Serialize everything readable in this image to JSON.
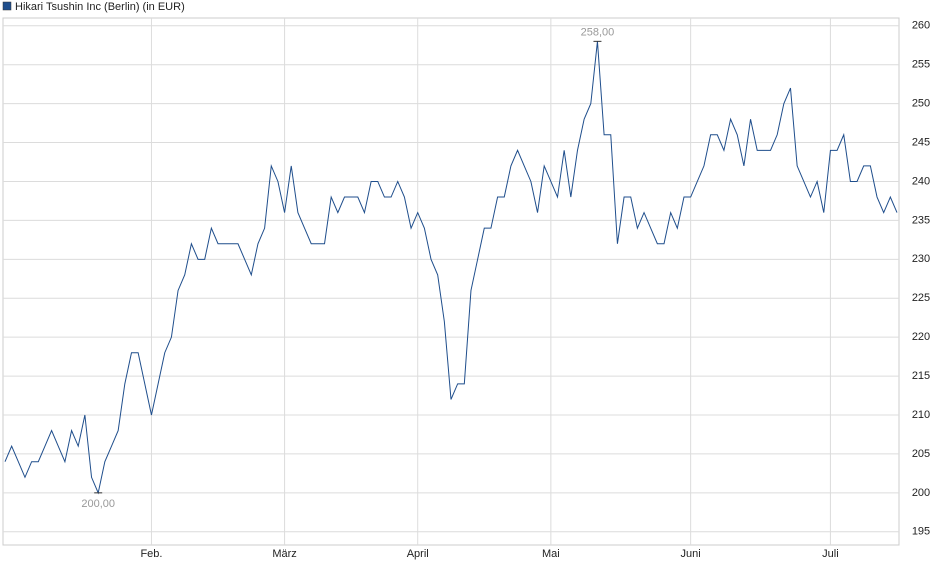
{
  "chart_data": {
    "type": "line",
    "categories": [
      null,
      null,
      null,
      null,
      null,
      null,
      null,
      null,
      null,
      null,
      null,
      null,
      null,
      null,
      null,
      null,
      null,
      null,
      null,
      null,
      null,
      null,
      "Feb.",
      null,
      null,
      null,
      null,
      null,
      null,
      null,
      null,
      null,
      null,
      null,
      null,
      null,
      null,
      null,
      null,
      null,
      null,
      null,
      "März",
      null,
      null,
      null,
      null,
      null,
      null,
      null,
      null,
      null,
      null,
      null,
      null,
      null,
      null,
      null,
      null,
      null,
      null,
      null,
      "April",
      null,
      null,
      null,
      null,
      null,
      null,
      null,
      null,
      null,
      null,
      null,
      null,
      null,
      null,
      null,
      null,
      null,
      null,
      null,
      "Mai",
      null,
      null,
      null,
      null,
      null,
      null,
      null,
      null,
      null,
      null,
      null,
      null,
      null,
      null,
      null,
      null,
      null,
      null,
      null,
      null,
      "Juni",
      null,
      null,
      null,
      null,
      null,
      null,
      null,
      null,
      null,
      null,
      null,
      null,
      null,
      null,
      null,
      null,
      null,
      null,
      null,
      null,
      "Juli",
      null,
      null,
      null,
      null,
      null,
      null,
      null,
      null,
      null,
      null
    ],
    "series": [
      {
        "name": "Hikari Tsushin Inc (Berlin) (in EUR)",
        "color": "#1f4e8c",
        "values": [
          204,
          206,
          204,
          202,
          204,
          204,
          206,
          208,
          206,
          204,
          208,
          206,
          210,
          202,
          200,
          204,
          206,
          208,
          214,
          218,
          218,
          214,
          210,
          214,
          218,
          220,
          226,
          228,
          232,
          230,
          230,
          234,
          232,
          232,
          232,
          232,
          230,
          228,
          232,
          234,
          242,
          240,
          236,
          242,
          236,
          234,
          232,
          232,
          232,
          238,
          236,
          238,
          238,
          238,
          236,
          240,
          240,
          238,
          238,
          240,
          238,
          234,
          236,
          234,
          230,
          228,
          222,
          212,
          214,
          214,
          226,
          230,
          234,
          234,
          238,
          238,
          242,
          244,
          242,
          240,
          236,
          242,
          240,
          238,
          244,
          238,
          244,
          248,
          250,
          258,
          246,
          246,
          232,
          238,
          238,
          234,
          236,
          234,
          232,
          232,
          236,
          234,
          238,
          238,
          240,
          242,
          246,
          246,
          244,
          248,
          246,
          242,
          248,
          244,
          244,
          244,
          246,
          250,
          252,
          242,
          240,
          238,
          240,
          236,
          244,
          244,
          246,
          240,
          240,
          242,
          242,
          238,
          236,
          238,
          236
        ],
        "value_labels": [
          null,
          null,
          null,
          null,
          null,
          null,
          null,
          null,
          null,
          null,
          null,
          null,
          null,
          null,
          "200,00",
          null,
          null,
          null,
          null,
          null,
          null,
          null,
          null,
          null,
          null,
          null,
          null,
          null,
          null,
          null,
          null,
          null,
          null,
          null,
          null,
          null,
          null,
          null,
          null,
          null,
          null,
          null,
          null,
          null,
          null,
          null,
          null,
          null,
          null,
          null,
          null,
          null,
          null,
          null,
          null,
          null,
          null,
          null,
          null,
          null,
          null,
          null,
          null,
          null,
          null,
          null,
          null,
          null,
          null,
          null,
          null,
          null,
          null,
          null,
          null,
          null,
          null,
          null,
          null,
          null,
          null,
          null,
          null,
          null,
          null,
          null,
          null,
          null,
          null,
          "258,00",
          null,
          null,
          null,
          null,
          null,
          null,
          null,
          null,
          null,
          null,
          null,
          null,
          null,
          null,
          null,
          null,
          null,
          null,
          null,
          null,
          null,
          null,
          null,
          null,
          null,
          null,
          null,
          null,
          null,
          null,
          null,
          null,
          null,
          null,
          null,
          null,
          null,
          null,
          null,
          null,
          null,
          null,
          null,
          null,
          null
        ]
      }
    ],
    "ylim": [
      193.3,
      261
    ],
    "yticks": [
      195,
      200,
      205,
      210,
      215,
      220,
      225,
      230,
      235,
      240,
      245,
      250,
      255,
      260
    ],
    "grid": true
  }
}
